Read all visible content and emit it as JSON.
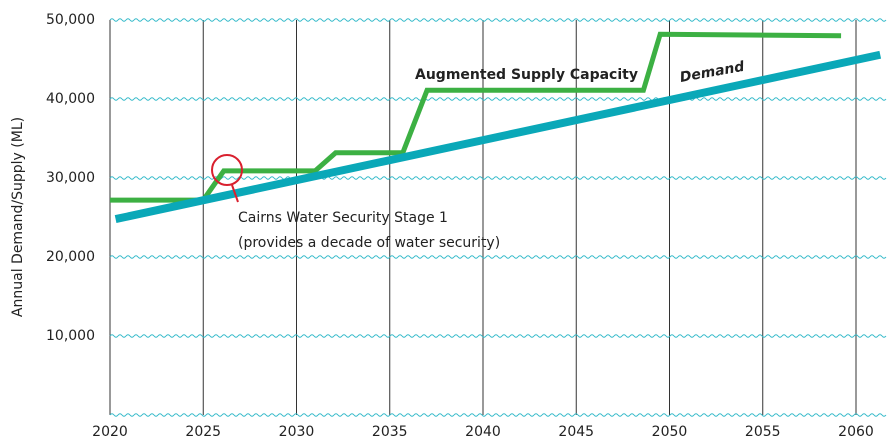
{
  "chart_data": {
    "type": "line",
    "ylabel": "Annual Demand/Supply (ML)",
    "xlim": [
      2020,
      2061.5
    ],
    "ylim": [
      0,
      50000
    ],
    "xticks": [
      2020,
      2025,
      2030,
      2035,
      2040,
      2045,
      2050,
      2055,
      2060
    ],
    "yticks": [
      0,
      {
        "value": 10000,
        "label": "10,000"
      },
      {
        "value": 20000,
        "label": "20,000"
      },
      {
        "value": 30000,
        "label": "30,000"
      },
      {
        "value": 40000,
        "label": "40,000"
      },
      {
        "value": 50000,
        "label": "50,000"
      }
    ],
    "grid": true,
    "series": [
      {
        "name": "Augmented Supply Capacity",
        "color": "#3cb043",
        "x": [
          2020,
          2025,
          2026.1,
          2031,
          2032.1,
          2035.7,
          2037,
          2048.6,
          2049.5,
          2059.2
        ],
        "values": [
          27200,
          27200,
          30900,
          30900,
          33200,
          33200,
          41100,
          41100,
          48200,
          48000
        ]
      },
      {
        "name": "Demand",
        "color": "#0aa8b8",
        "x": [
          2020.3,
          2061.3
        ],
        "values": [
          24800,
          45600
        ]
      }
    ],
    "annotations": [
      "Cairns Water Security Stage 1",
      "(provides a decade of water security)"
    ],
    "annotation_color": "#d9202e"
  }
}
